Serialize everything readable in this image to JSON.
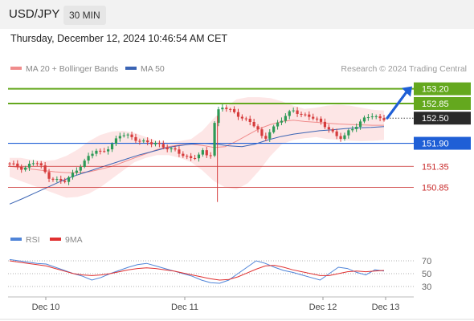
{
  "header": {
    "symbol": "USD/JPY",
    "timeframe": "30 MIN",
    "timestamp": "Thursday, December 12, 2024 10:46:54 AM CET",
    "credit": "Research © 2024 Trading Central"
  },
  "legend": {
    "ma20_bb": "MA 20 + Bollinger Bands",
    "ma50": "MA 50",
    "rsi": "RSI",
    "rsi_ma": "9MA"
  },
  "colors": {
    "bull": "#2e9a57",
    "bear": "#d63c3c",
    "ma20": "#f08c8c",
    "bollinger_fill": "#fde6e6",
    "ma50": "#3a64b4",
    "resistance": "#64a81e",
    "current": "#2a2a2a",
    "pivot": "#1f5fd6",
    "support": "#c82828",
    "arrow": "#1f5fd6",
    "rsi": "#4f84d8",
    "rsi_ma": "#e03030"
  },
  "chart_data": {
    "type": "candlestick",
    "title": "USD/JPY",
    "timeframe": "30 MIN",
    "x_labels": [
      "Dec 10",
      "Dec 11",
      "Dec 12",
      "Dec 13"
    ],
    "ylim": [
      149.9,
      153.5
    ],
    "levels": [
      {
        "value": 153.2,
        "label": "153.20",
        "kind": "resistance"
      },
      {
        "value": 152.85,
        "label": "152.85",
        "kind": "resistance"
      },
      {
        "value": 152.5,
        "label": "152.50",
        "kind": "current"
      },
      {
        "value": 151.9,
        "label": "151.90",
        "kind": "pivot"
      },
      {
        "value": 151.35,
        "label": "151.35",
        "kind": "support"
      },
      {
        "value": 150.85,
        "label": "150.85",
        "kind": "support"
      }
    ],
    "price_path": [
      151.42,
      151.38,
      151.35,
      151.3,
      151.4,
      151.45,
      151.32,
      151.12,
      151.05,
      151.0,
      150.98,
      151.15,
      151.32,
      151.45,
      151.6,
      151.72,
      151.68,
      151.8,
      151.92,
      152.06,
      152.12,
      152.05,
      151.98,
      151.92,
      151.88,
      151.92,
      151.85,
      151.78,
      151.72,
      151.65,
      151.6,
      151.55,
      151.6,
      151.7,
      151.5,
      152.65,
      152.78,
      152.7,
      152.62,
      152.55,
      152.48,
      152.38,
      152.2,
      151.95,
      152.22,
      152.35,
      152.45,
      152.6,
      152.7,
      152.62,
      152.55,
      152.5,
      152.45,
      152.35,
      152.25,
      152.05,
      152.0,
      152.18,
      152.3,
      152.4,
      152.5,
      152.55,
      152.52,
      152.5
    ],
    "ma20_path": [
      151.35,
      151.32,
      151.28,
      151.25,
      151.22,
      151.2,
      151.2,
      151.22,
      151.28,
      151.35,
      151.45,
      151.55,
      151.65,
      151.75,
      151.82,
      151.86,
      151.88,
      151.85,
      151.8,
      151.82,
      151.95,
      152.1,
      152.25,
      152.35,
      152.42,
      152.45,
      152.42,
      152.4,
      152.38,
      152.36,
      152.35,
      152.34,
      152.33,
      152.33
    ],
    "bb_upper_path": [
      151.55,
      151.55,
      151.5,
      151.48,
      151.5,
      151.6,
      151.75,
      151.95,
      152.1,
      152.18,
      152.2,
      152.15,
      152.05,
      151.95,
      151.92,
      151.95,
      152.0,
      152.2,
      152.5,
      152.75,
      152.95,
      153.0,
      153.0,
      152.98,
      152.9,
      152.8,
      152.72,
      152.75,
      152.8,
      152.82,
      152.8,
      152.75,
      152.7,
      152.68
    ],
    "bb_lower_path": [
      151.1,
      151.0,
      150.9,
      150.8,
      150.7,
      150.6,
      150.62,
      150.7,
      150.85,
      151.05,
      151.25,
      151.45,
      151.55,
      151.62,
      151.62,
      151.55,
      151.45,
      151.25,
      151.0,
      150.85,
      150.8,
      150.95,
      151.25,
      151.6,
      151.88,
      151.98,
      152.02,
      152.05,
      152.0,
      151.98,
      151.96,
      151.95,
      151.96,
      151.98
    ],
    "ma50_path": [
      150.45,
      150.58,
      150.72,
      150.86,
      151.0,
      151.12,
      151.22,
      151.32,
      151.42,
      151.52,
      151.62,
      151.7,
      151.78,
      151.84,
      151.88,
      151.9,
      151.88,
      151.84,
      151.82,
      151.88,
      151.98,
      152.06,
      152.12,
      152.16,
      152.2,
      152.22,
      152.25,
      152.27,
      152.28,
      152.3
    ],
    "forecast_target": 153.2,
    "rsi": {
      "ylim": [
        20,
        80
      ],
      "ticks": [
        70,
        50,
        30
      ],
      "rsi_path": [
        72,
        70,
        68,
        66,
        65,
        60,
        55,
        50,
        46,
        40,
        44,
        50,
        55,
        60,
        64,
        66,
        62,
        58,
        54,
        50,
        46,
        40,
        36,
        35,
        40,
        50,
        60,
        70,
        66,
        60,
        55,
        52,
        48,
        44,
        40,
        50,
        60,
        58,
        52,
        48,
        56,
        54
      ],
      "ma_path": [
        70,
        68,
        66,
        64,
        62,
        58,
        54,
        50,
        48,
        47,
        48,
        50,
        53,
        56,
        58,
        59,
        58,
        56,
        54,
        51,
        48,
        45,
        42,
        40,
        41,
        45,
        51,
        57,
        62,
        63,
        60,
        56,
        53,
        50,
        47,
        47,
        50,
        53,
        54,
        53,
        54,
        55
      ]
    }
  }
}
